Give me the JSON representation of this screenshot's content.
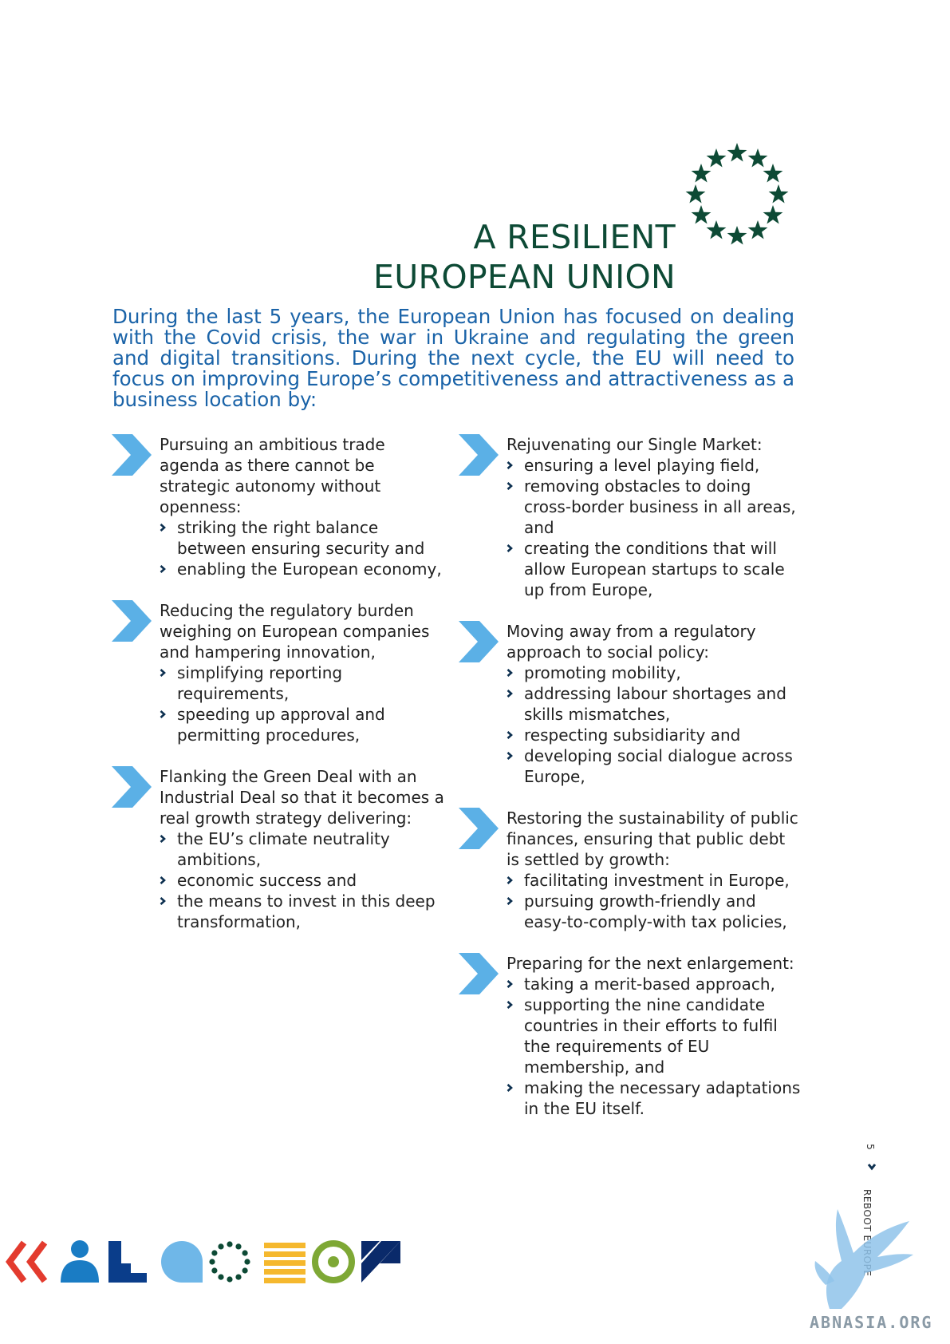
{
  "title": {
    "line1": "A RESILIENT",
    "line2": "EUROPEAN UNION"
  },
  "intro": "During the last 5 years, the European Union has focused on dealing with the Covid crisis, the war in Ukraine and regulating the green and digital transitions. During the next cycle, the EU will need to focus on improving Europe’s competitiveness and attractiveness as a business location by:",
  "colors": {
    "green": "#0d4a35",
    "blue": "#1a63a8",
    "chevron": "#5bb0e6",
    "bullet": "#0d3050"
  },
  "left_column": [
    {
      "lead": "Pursuing an ambitious trade agenda as there cannot be strategic autonomy without openness:",
      "bullets": [
        "striking the right balance between ensuring security and",
        "enabling the European economy,"
      ]
    },
    {
      "lead": "Reducing the regulatory burden weighing on European companies and hampering innovation,",
      "bullets": [
        "simplifying reporting requirements,",
        "speeding up approval and permitting procedures,"
      ]
    },
    {
      "lead": "Flanking the Green Deal with an Industrial Deal so that it becomes a real growth strategy delivering:",
      "bullets": [
        "the EU’s climate neutrality ambitions,",
        "economic success and",
        "the means to invest in this deep transformation,"
      ]
    }
  ],
  "right_column": [
    {
      "lead": "Rejuvenating our Single Market:",
      "bullets": [
        "ensuring a level playing field,",
        "removing obstacles to doing cross-border business in all areas, and",
        "creating the conditions that will allow European startups to scale up from Europe,"
      ]
    },
    {
      "lead": "Moving away from a regulatory approach to social policy:",
      "bullets": [
        "promoting mobility,",
        "addressing labour shortages and skills mismatches,",
        "respecting subsidiarity and",
        "developing social dialogue across Europe,"
      ]
    },
    {
      "lead": "Restoring the sustainability of public finances, ensuring that public debt is settled by growth:",
      "bullets": [
        "facilitating investment in Europe,",
        "pursuing growth-friendly and easy-to-comply-with tax policies,"
      ]
    },
    {
      "lead": "Preparing for the next enlargement:",
      "bullets": [
        "taking a merit-based approach,",
        "supporting the nine candidate countries in their efforts to fulfil the requirements of EU membership, and",
        "making the necessary adaptations in the EU itself."
      ]
    }
  ],
  "footer": {
    "page_number": "5",
    "publication": "REBOOT EUROPE",
    "watermark": "ABNASIA.ORG"
  },
  "icons": [
    "eu-stars-icon",
    "chevron-right-icon",
    "bullet-chevron-icon",
    "double-chevron-icon",
    "person-icon",
    "steps-icon",
    "speech-bubble-icon",
    "star-circle-icon",
    "lines-icon",
    "target-icon",
    "triangles-icon",
    "griffin-icon"
  ]
}
